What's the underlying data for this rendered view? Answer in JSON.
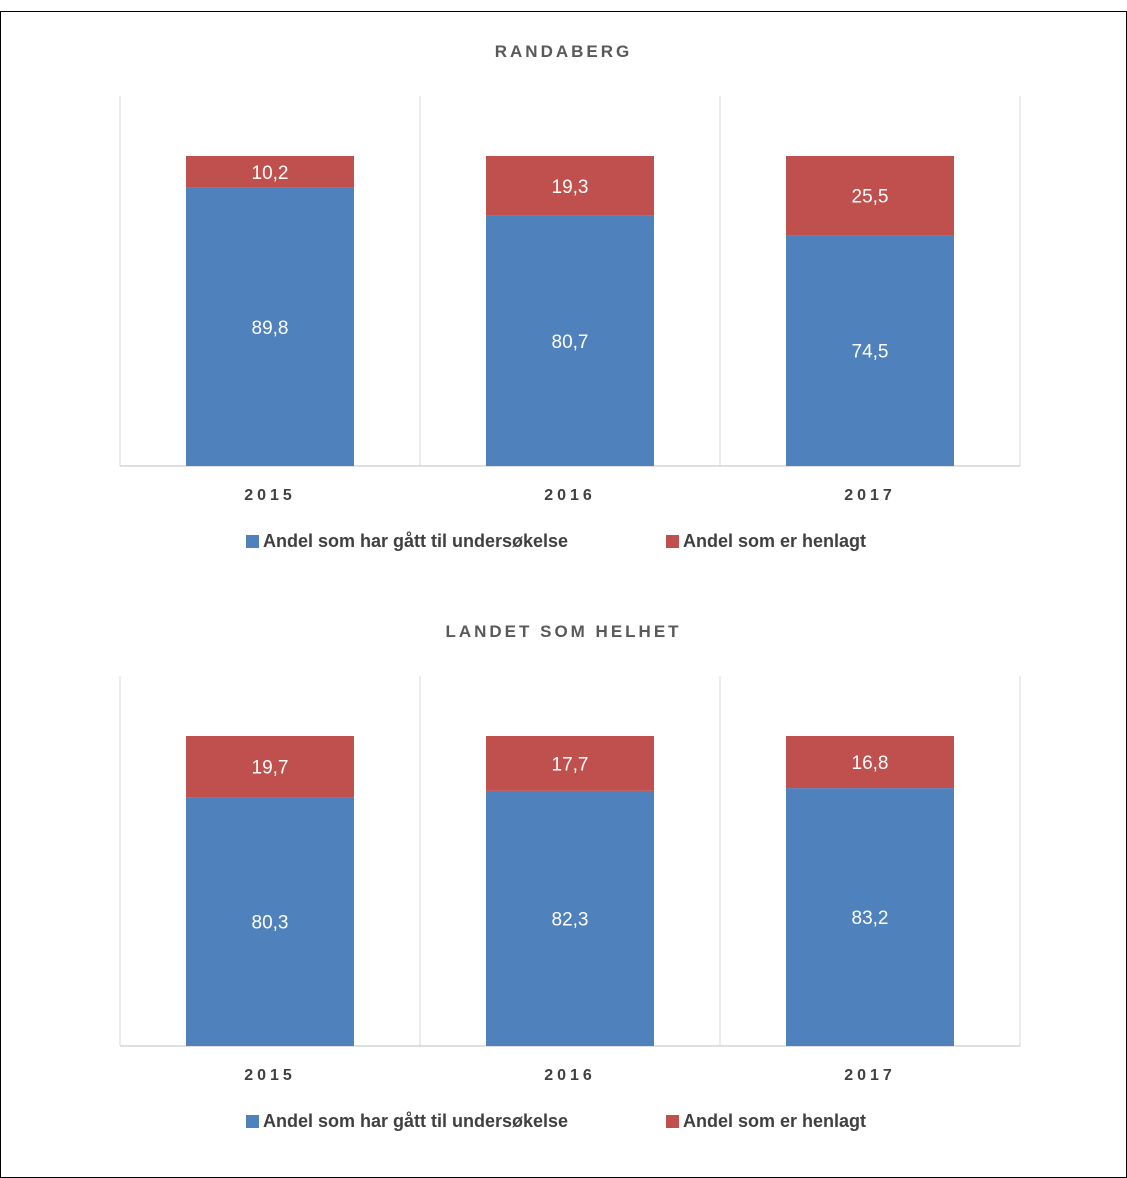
{
  "colors": {
    "undersokelse": "#4f81bd",
    "henlagt": "#c0504d",
    "grid": "#d9d9d9",
    "axis": "#bfbfbf"
  },
  "chart_data": [
    {
      "type": "bar",
      "stacked": true,
      "title": "RANDABERG",
      "categories": [
        "2015",
        "2016",
        "2017"
      ],
      "series": [
        {
          "name": "Andel som har gått til undersøkelse",
          "values": [
            89.8,
            80.7,
            74.5
          ],
          "labels": [
            "89,8",
            "80,7",
            "74,5"
          ]
        },
        {
          "name": "Andel som er henlagt",
          "values": [
            10.2,
            19.3,
            25.5
          ],
          "labels": [
            "10,2",
            "19,3",
            "25,5"
          ]
        }
      ],
      "legend": "bottom",
      "grid": "vertical"
    },
    {
      "type": "bar",
      "stacked": true,
      "title": "LANDET SOM HELHET",
      "categories": [
        "2015",
        "2016",
        "2017"
      ],
      "series": [
        {
          "name": "Andel som har gått til undersøkelse",
          "values": [
            80.3,
            82.3,
            83.2
          ],
          "labels": [
            "80,3",
            "82,3",
            "83,2"
          ]
        },
        {
          "name": "Andel som er henlagt",
          "values": [
            19.7,
            17.7,
            16.8
          ],
          "labels": [
            "19,7",
            "17,7",
            "16,8"
          ]
        }
      ],
      "legend": "bottom",
      "grid": "vertical"
    }
  ]
}
